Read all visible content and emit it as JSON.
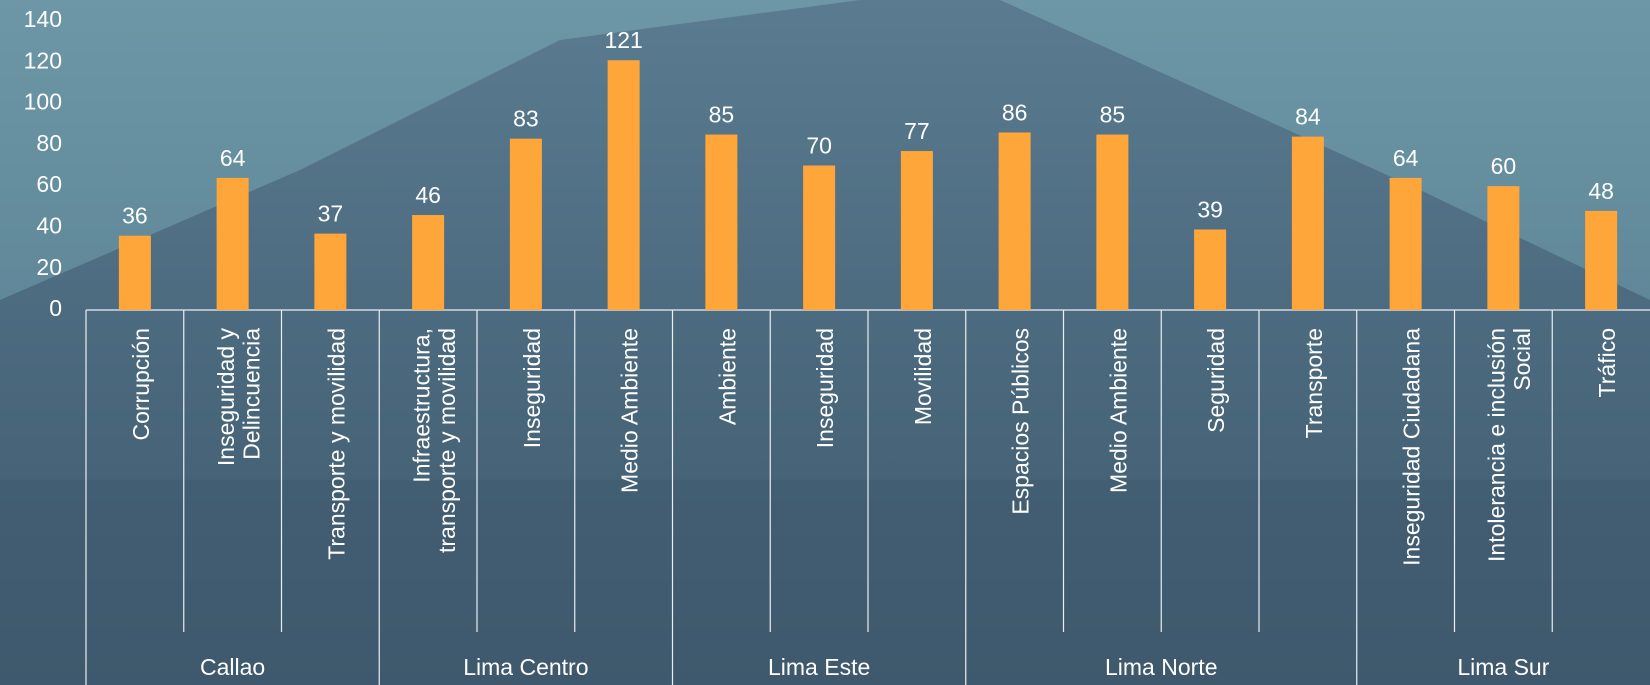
{
  "chart_data": {
    "type": "bar",
    "categories": [
      "Corrupción",
      "Inseguridad y\nDelincuencia",
      "Transporte y movilidad",
      "Infraestructura,\ntransporte y movilidad",
      "Inseguridad",
      "Medio Ambiente",
      "Ambiente",
      "Inseguridad",
      "Movilidad",
      "Espacios Públicos",
      "Medio Ambiente",
      "Seguridad",
      "Transporte",
      "Inseguridad Ciudadana",
      "Intolerancia e inclusión\nSocial",
      "Tráfico"
    ],
    "groups": [
      {
        "name": "Callao",
        "count": 3
      },
      {
        "name": "Lima Centro",
        "count": 3
      },
      {
        "name": "Lima Este",
        "count": 3
      },
      {
        "name": "Lima Norte",
        "count": 4
      },
      {
        "name": "Lima Sur",
        "count": 3
      }
    ],
    "values": [
      36,
      64,
      37,
      46,
      83,
      121,
      85,
      70,
      77,
      86,
      85,
      39,
      84,
      64,
      60,
      48
    ],
    "color": "#ffa63a",
    "ylim": [
      0,
      140
    ],
    "yticks": [
      0,
      20,
      40,
      60,
      80,
      100,
      120,
      140
    ]
  }
}
